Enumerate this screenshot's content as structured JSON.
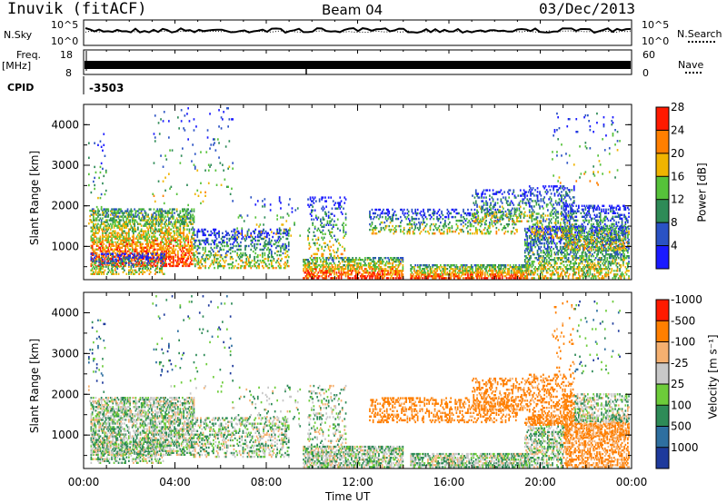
{
  "header": {
    "station": "Inuvik (fitACF)",
    "beam": "Beam 04",
    "date": "03/Dec/2013"
  },
  "noise_panel": {
    "left_label": "N.Sky",
    "right_label": "N.Search",
    "tick_top": "10^5",
    "tick_bottom": "10^0"
  },
  "freq_panel": {
    "left_label": "Freq.",
    "left_unit": "[MHz]",
    "right_label": "Nave",
    "left_ticks": [
      "18",
      "8"
    ],
    "right_ticks": [
      "60",
      "0"
    ]
  },
  "cpid": {
    "label": "CPID",
    "value": "-3503"
  },
  "chart_data": [
    {
      "type": "heatmap",
      "panel": "power",
      "ylabel": "Slant Range [km]",
      "ylim": [
        180,
        4500
      ],
      "yticks": [
        1000,
        2000,
        3000,
        4000
      ],
      "xlim": [
        0,
        24
      ],
      "colorbar_label": "Power [dB]",
      "colorbar_ticks": [
        4,
        8,
        12,
        16,
        20,
        24,
        28
      ],
      "colors": [
        "#1a1aff",
        "#2a52c4",
        "#2e8b57",
        "#56c23a",
        "#f0b400",
        "#ff7f00",
        "#ff1a00"
      ]
    },
    {
      "type": "heatmap",
      "panel": "velocity",
      "ylabel": "Slant Range [km]",
      "ylim": [
        180,
        4500
      ],
      "yticks": [
        1000,
        2000,
        3000,
        4000
      ],
      "xlim": [
        0,
        24
      ],
      "xlabel": "Time UT",
      "xticks": [
        "00:00",
        "04:00",
        "08:00",
        "12:00",
        "16:00",
        "20:00",
        "00:00"
      ],
      "colorbar_label": "Velocity [m s⁻¹]",
      "colorbar_ticks": [
        "1000",
        "500",
        "100",
        "25",
        "-25",
        "-100",
        "-500",
        "-1000"
      ],
      "colors": [
        "#1e3a9c",
        "#2e6fa0",
        "#2e8b57",
        "#6dcc3a",
        "#c8c8c8",
        "#f5b070",
        "#ff7f00",
        "#ff1a00"
      ]
    }
  ]
}
